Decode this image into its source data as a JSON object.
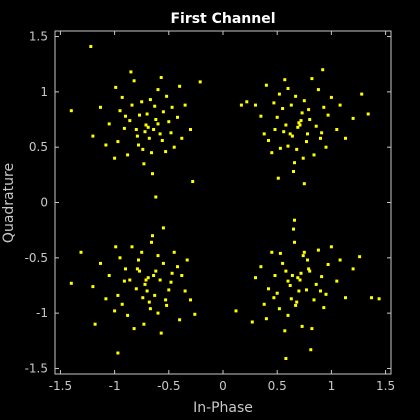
{
  "chart_data": {
    "type": "scatter",
    "title": "First Channel",
    "xlabel": "In-Phase",
    "ylabel": "Quadrature",
    "xlim": [
      -1.55,
      1.55
    ],
    "ylim": [
      -1.55,
      1.55
    ],
    "xticks": [
      -1.5,
      -1,
      -0.5,
      0,
      0.5,
      1,
      1.5
    ],
    "xtick_labels": [
      "-1.5",
      "-1",
      "-0.5",
      "0",
      "0.5",
      "1",
      "1.5"
    ],
    "yticks": [
      -1.5,
      -1,
      -0.5,
      0,
      0.5,
      1,
      1.5
    ],
    "ytick_labels": [
      "-1.5",
      "-1",
      "-0.5",
      "0",
      "0.5",
      "1",
      "1.5"
    ],
    "grid": false,
    "marker_color": "#ffff00",
    "background_color": "#000000",
    "axes_color": "#c8c8c8",
    "series": [
      {
        "points": [
          [
            -0.71,
            0.7
          ],
          [
            -0.62,
            0.75
          ],
          [
            -0.8,
            0.66
          ],
          [
            -0.55,
            0.82
          ],
          [
            -0.9,
            0.78
          ],
          [
            -0.68,
            0.58
          ],
          [
            -0.75,
            0.91
          ],
          [
            -0.48,
            0.63
          ],
          [
            -0.97,
            0.55
          ],
          [
            -0.6,
            1.02
          ],
          [
            -0.84,
            0.88
          ],
          [
            -0.42,
            0.77
          ],
          [
            -1.05,
            0.71
          ],
          [
            -0.66,
            0.45
          ],
          [
            -0.73,
            0.35
          ],
          [
            -0.52,
            0.96
          ],
          [
            -0.88,
            0.43
          ],
          [
            -0.35,
            0.88
          ],
          [
            -1.13,
            0.86
          ],
          [
            -0.58,
            0.62
          ],
          [
            -0.77,
            0.79
          ],
          [
            -0.69,
            0.68
          ],
          [
            -0.63,
            0.87
          ],
          [
            -0.93,
            0.95
          ],
          [
            -0.45,
            0.5
          ],
          [
            -1.0,
            0.4
          ],
          [
            -0.82,
            1.1
          ],
          [
            -0.57,
            1.13
          ],
          [
            -0.3,
            0.66
          ],
          [
            -1.2,
            0.6
          ],
          [
            -0.65,
            0.26
          ],
          [
            -0.4,
            1.05
          ],
          [
            -0.78,
            0.52
          ],
          [
            -0.72,
            0.64
          ],
          [
            -0.6,
            0.71
          ],
          [
            -0.86,
            0.74
          ],
          [
            -0.5,
            0.73
          ],
          [
            -0.95,
            0.83
          ],
          [
            -0.67,
            0.93
          ],
          [
            -0.74,
            0.48
          ],
          [
            -1.22,
            1.41
          ],
          [
            -1.4,
            0.83
          ],
          [
            -0.21,
            1.09
          ],
          [
            -0.62,
            0.05
          ],
          [
            -0.28,
            0.19
          ],
          [
            -0.85,
            1.18
          ],
          [
            -0.56,
            0.56
          ],
          [
            -0.7,
            0.8
          ],
          [
            -0.64,
            0.66
          ],
          [
            -0.79,
            0.6
          ],
          [
            -0.47,
            0.86
          ],
          [
            -0.91,
            0.67
          ],
          [
            -0.53,
            0.46
          ],
          [
            -1.08,
            0.52
          ],
          [
            -0.38,
            0.58
          ],
          [
            -0.99,
            1.04
          ],
          [
            0.71,
            0.7
          ],
          [
            0.62,
            0.62
          ],
          [
            0.8,
            0.75
          ],
          [
            0.55,
            0.85
          ],
          [
            0.9,
            0.58
          ],
          [
            0.68,
            0.48
          ],
          [
            0.75,
            0.92
          ],
          [
            0.48,
            0.66
          ],
          [
            0.97,
            0.79
          ],
          [
            0.6,
            1.03
          ],
          [
            0.84,
            0.43
          ],
          [
            0.42,
            0.56
          ],
          [
            1.05,
            0.66
          ],
          [
            0.66,
            0.36
          ],
          [
            0.73,
            0.81
          ],
          [
            0.52,
            0.98
          ],
          [
            0.88,
            1.02
          ],
          [
            0.35,
            0.78
          ],
          [
            1.13,
            0.58
          ],
          [
            0.58,
            0.7
          ],
          [
            0.77,
            0.55
          ],
          [
            0.69,
            0.68
          ],
          [
            0.63,
            0.88
          ],
          [
            0.93,
            0.86
          ],
          [
            0.45,
            0.45
          ],
          [
            1.0,
            0.95
          ],
          [
            0.82,
            1.12
          ],
          [
            0.57,
            1.11
          ],
          [
            0.3,
            0.88
          ],
          [
            1.2,
            0.76
          ],
          [
            0.65,
            0.28
          ],
          [
            0.4,
            1.06
          ],
          [
            0.78,
            0.62
          ],
          [
            0.72,
            0.74
          ],
          [
            0.6,
            0.51
          ],
          [
            0.86,
            0.69
          ],
          [
            0.5,
            0.77
          ],
          [
            0.95,
            0.5
          ],
          [
            0.67,
            0.96
          ],
          [
            0.74,
            0.4
          ],
          [
            0.22,
            0.91
          ],
          [
            0.17,
            0.88
          ],
          [
            1.34,
            0.8
          ],
          [
            0.75,
            0.17
          ],
          [
            0.51,
            0.22
          ],
          [
            0.92,
            1.2
          ],
          [
            1.28,
            0.98
          ],
          [
            0.56,
            0.64
          ],
          [
            0.7,
            0.72
          ],
          [
            0.64,
            0.6
          ],
          [
            0.79,
            0.84
          ],
          [
            0.47,
            0.9
          ],
          [
            0.91,
            0.63
          ],
          [
            0.53,
            0.49
          ],
          [
            1.08,
            0.88
          ],
          [
            0.38,
            0.62
          ],
          [
            -0.71,
            -0.7
          ],
          [
            -0.62,
            -0.62
          ],
          [
            -0.8,
            -0.78
          ],
          [
            -0.55,
            -0.55
          ],
          [
            -0.9,
            -0.6
          ],
          [
            -0.68,
            -0.9
          ],
          [
            -0.75,
            -0.45
          ],
          [
            -0.48,
            -0.72
          ],
          [
            -0.97,
            -0.84
          ],
          [
            -0.6,
            -1.0
          ],
          [
            -0.84,
            -0.4
          ],
          [
            -0.42,
            -0.58
          ],
          [
            -1.05,
            -0.66
          ],
          [
            -0.66,
            -0.36
          ],
          [
            -0.73,
            -1.1
          ],
          [
            -0.52,
            -0.93
          ],
          [
            -0.88,
            -1.02
          ],
          [
            -0.35,
            -0.8
          ],
          [
            -1.13,
            -0.55
          ],
          [
            -0.58,
            -0.7
          ],
          [
            -0.77,
            -0.62
          ],
          [
            -0.69,
            -0.68
          ],
          [
            -0.63,
            -0.84
          ],
          [
            -0.93,
            -0.92
          ],
          [
            -0.45,
            -0.45
          ],
          [
            -1.0,
            -0.98
          ],
          [
            -0.82,
            -1.14
          ],
          [
            -0.57,
            -1.18
          ],
          [
            -0.3,
            -0.88
          ],
          [
            -1.2,
            -0.76
          ],
          [
            -0.65,
            -0.3
          ],
          [
            -0.4,
            -1.06
          ],
          [
            -0.78,
            -0.52
          ],
          [
            -0.72,
            -0.74
          ],
          [
            -0.6,
            -0.48
          ],
          [
            -0.86,
            -0.7
          ],
          [
            -0.5,
            -0.79
          ],
          [
            -0.95,
            -0.5
          ],
          [
            -0.67,
            -0.96
          ],
          [
            -0.74,
            -0.86
          ],
          [
            -1.31,
            -0.45
          ],
          [
            -1.18,
            -1.1
          ],
          [
            -0.26,
            -1.01
          ],
          [
            -0.55,
            -0.23
          ],
          [
            -0.97,
            -1.36
          ],
          [
            -0.33,
            -0.52
          ],
          [
            -1.4,
            -0.73
          ],
          [
            -0.7,
            -0.8
          ],
          [
            -0.64,
            -0.66
          ],
          [
            -0.79,
            -0.6
          ],
          [
            -0.47,
            -0.64
          ],
          [
            -0.91,
            -0.71
          ],
          [
            -0.53,
            -0.88
          ],
          [
            -1.08,
            -0.87
          ],
          [
            -0.38,
            -0.66
          ],
          [
            -0.99,
            -0.4
          ],
          [
            0.71,
            -0.7
          ],
          [
            0.62,
            -0.75
          ],
          [
            0.8,
            -0.62
          ],
          [
            0.55,
            -0.55
          ],
          [
            0.9,
            -0.8
          ],
          [
            0.68,
            -0.9
          ],
          [
            0.75,
            -0.45
          ],
          [
            0.48,
            -0.66
          ],
          [
            0.97,
            -0.56
          ],
          [
            0.6,
            -1.02
          ],
          [
            0.84,
            -0.88
          ],
          [
            0.42,
            -0.78
          ],
          [
            1.05,
            -0.71
          ],
          [
            0.66,
            -0.36
          ],
          [
            0.73,
            -1.12
          ],
          [
            0.52,
            -0.96
          ],
          [
            0.88,
            -0.43
          ],
          [
            0.35,
            -0.58
          ],
          [
            1.13,
            -0.86
          ],
          [
            0.58,
            -0.62
          ],
          [
            0.77,
            -0.79
          ],
          [
            0.69,
            -0.68
          ],
          [
            0.63,
            -0.87
          ],
          [
            0.93,
            -0.95
          ],
          [
            0.45,
            -0.45
          ],
          [
            1.0,
            -0.4
          ],
          [
            0.82,
            -1.14
          ],
          [
            0.57,
            -1.16
          ],
          [
            0.3,
            -0.68
          ],
          [
            1.2,
            -0.6
          ],
          [
            0.65,
            -0.24
          ],
          [
            0.4,
            -1.05
          ],
          [
            0.78,
            -0.52
          ],
          [
            0.72,
            -0.64
          ],
          [
            0.6,
            -0.71
          ],
          [
            0.86,
            -0.74
          ],
          [
            0.5,
            -0.82
          ],
          [
            0.95,
            -0.83
          ],
          [
            0.67,
            -0.93
          ],
          [
            0.74,
            -0.48
          ],
          [
            0.58,
            -1.41
          ],
          [
            0.81,
            -1.33
          ],
          [
            1.37,
            -0.86
          ],
          [
            1.44,
            -0.87
          ],
          [
            0.12,
            -0.98
          ],
          [
            0.27,
            -1.08
          ],
          [
            0.66,
            -0.16
          ],
          [
            1.26,
            -0.49
          ],
          [
            0.7,
            -0.8
          ],
          [
            0.64,
            -0.66
          ],
          [
            0.79,
            -0.6
          ],
          [
            0.47,
            -0.86
          ],
          [
            0.91,
            -0.67
          ],
          [
            0.53,
            -0.46
          ],
          [
            1.08,
            -0.52
          ],
          [
            0.38,
            -0.92
          ]
        ]
      }
    ]
  }
}
